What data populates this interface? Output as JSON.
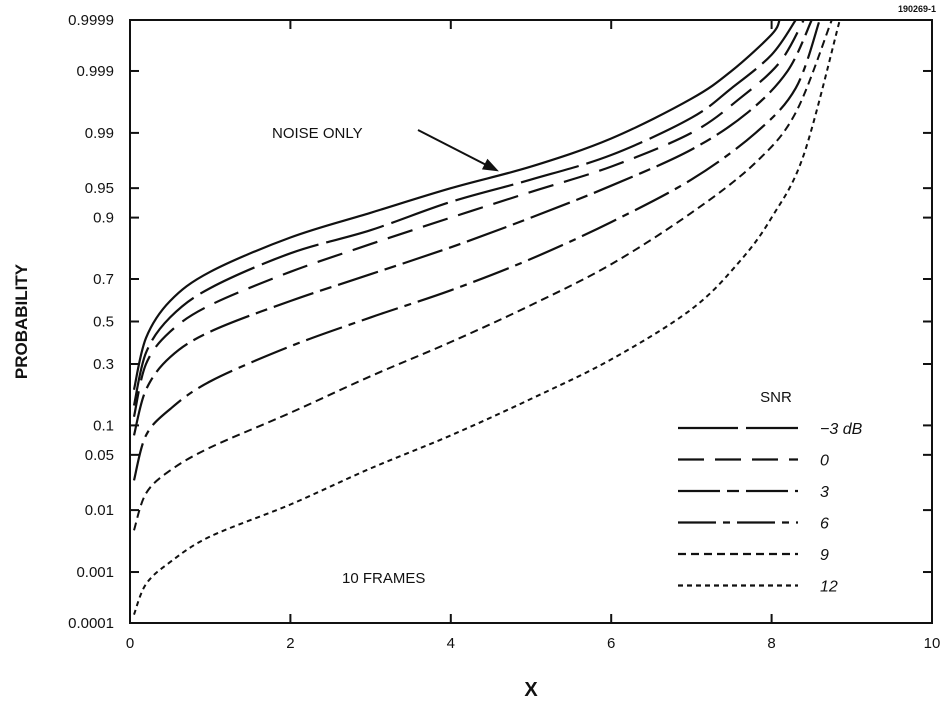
{
  "figure_id": "190269-1",
  "chart_data": {
    "type": "line",
    "xlabel": "X",
    "ylabel": "PROBABILITY",
    "xlim": [
      0,
      10
    ],
    "x_ticks": [
      0,
      2,
      4,
      6,
      8,
      10
    ],
    "x_tick_labels": [
      "0",
      "2",
      "4",
      "6",
      "8",
      "10"
    ],
    "y_scale": "normal-probability",
    "ylim": [
      0.0001,
      0.9999
    ],
    "y_ticks": [
      0.0001,
      0.001,
      0.01,
      0.05,
      0.1,
      0.3,
      0.5,
      0.7,
      0.9,
      0.95,
      0.99,
      0.999,
      0.9999
    ],
    "y_tick_labels": [
      "0.0001",
      "0.001",
      "0.01",
      "0.05",
      "0.1",
      "0.3",
      "0.5",
      "0.7",
      "0.9",
      "0.95",
      "0.99",
      "0.999",
      "0.9999"
    ],
    "grid": false,
    "annotations": [
      {
        "text": "NOISE ONLY",
        "points_to_series": 0
      },
      {
        "text": "10 FRAMES"
      }
    ],
    "legend": {
      "title": "SNR",
      "placement": "bottom-right"
    },
    "series": [
      {
        "label": "NOISE ONLY",
        "style": "solid",
        "x": [
          0.05,
          0.2,
          0.5,
          1.0,
          2.0,
          3.0,
          4.0,
          5.0,
          6.0,
          7.0,
          7.5,
          8.0,
          8.1
        ],
        "y": [
          0.2,
          0.42,
          0.6,
          0.73,
          0.85,
          0.91,
          0.95,
          0.972,
          0.988,
          0.997,
          0.999,
          0.9998,
          0.9999
        ]
      },
      {
        "name": "-3 dB",
        "legend_label": "−3 dB",
        "style": "longdash-solid",
        "x": [
          0.05,
          0.2,
          0.5,
          1.0,
          2.0,
          3.0,
          4.0,
          5.0,
          6.0,
          7.0,
          7.5,
          8.0,
          8.3
        ],
        "y": [
          0.15,
          0.35,
          0.52,
          0.66,
          0.8,
          0.87,
          0.93,
          0.96,
          0.98,
          0.994,
          0.998,
          0.9995,
          0.9999
        ]
      },
      {
        "name": "0",
        "legend_label": "0",
        "style": "dashed",
        "x": [
          0.05,
          0.2,
          0.5,
          1.0,
          2.0,
          3.0,
          4.0,
          5.0,
          6.0,
          7.0,
          7.6,
          8.1,
          8.4
        ],
        "y": [
          0.12,
          0.3,
          0.45,
          0.58,
          0.73,
          0.83,
          0.9,
          0.945,
          0.972,
          0.99,
          0.997,
          0.9993,
          0.9999
        ]
      },
      {
        "name": "3",
        "legend_label": "3",
        "style": "longdash-dash",
        "x": [
          0.05,
          0.2,
          0.5,
          1.0,
          2.0,
          3.0,
          4.0,
          5.0,
          6.0,
          7.0,
          7.7,
          8.2,
          8.5
        ],
        "y": [
          0.08,
          0.2,
          0.33,
          0.45,
          0.6,
          0.72,
          0.82,
          0.9,
          0.953,
          0.983,
          0.995,
          0.999,
          0.9999
        ]
      },
      {
        "name": "6",
        "legend_label": "6",
        "style": "dashdot",
        "x": [
          0.05,
          0.2,
          0.5,
          1.0,
          2.0,
          3.0,
          4.0,
          5.0,
          6.0,
          7.0,
          7.8,
          8.3,
          8.6
        ],
        "y": [
          0.025,
          0.08,
          0.14,
          0.23,
          0.38,
          0.52,
          0.65,
          0.78,
          0.89,
          0.96,
          0.99,
          0.998,
          0.9999
        ]
      },
      {
        "name": "9",
        "legend_label": "9",
        "style": "shortdash",
        "x": [
          0.05,
          0.2,
          0.5,
          1.0,
          2.0,
          3.0,
          4.0,
          5.0,
          6.0,
          7.0,
          7.8,
          8.3,
          8.75
        ],
        "y": [
          0.005,
          0.017,
          0.033,
          0.06,
          0.13,
          0.25,
          0.4,
          0.58,
          0.76,
          0.91,
          0.975,
          0.995,
          0.9999
        ]
      },
      {
        "name": "12",
        "legend_label": "12",
        "style": "dotted",
        "x": [
          0.05,
          0.2,
          0.5,
          1.0,
          2.0,
          3.0,
          4.0,
          5.0,
          6.0,
          7.0,
          7.6,
          8.0,
          8.4,
          8.85
        ],
        "y": [
          0.00015,
          0.0006,
          0.0015,
          0.004,
          0.012,
          0.035,
          0.08,
          0.17,
          0.32,
          0.56,
          0.77,
          0.9,
          0.98,
          0.9999
        ]
      }
    ]
  }
}
